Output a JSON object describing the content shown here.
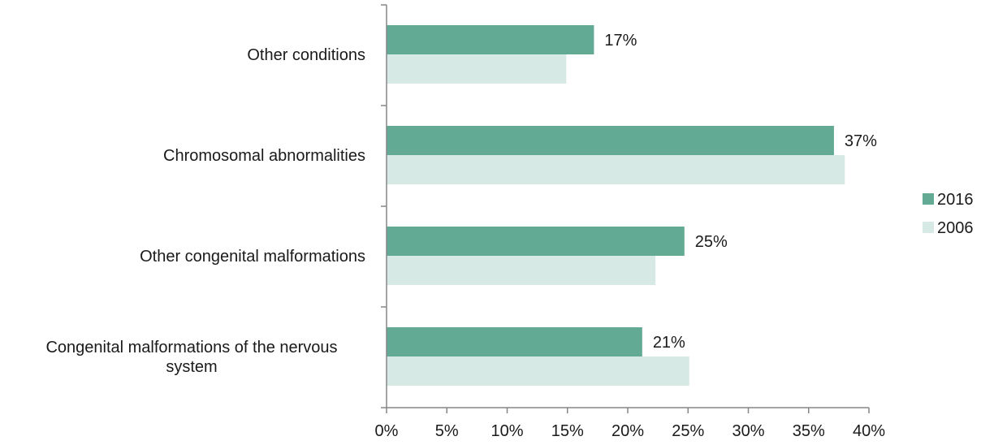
{
  "chart_data": {
    "type": "bar",
    "orientation": "horizontal",
    "categories": [
      "Congenital malformations of the nervous system",
      "Other congenital malformations",
      "Chromosomal abnormalities",
      "Other conditions"
    ],
    "category_lines": [
      [
        "Congenital malformations of the nervous",
        "system"
      ],
      [
        "Other congenital malformations"
      ],
      [
        "Chromosomal abnormalities"
      ],
      [
        "Other conditions"
      ]
    ],
    "series": [
      {
        "name": "2016",
        "values": [
          21.2,
          24.7,
          37.1,
          17.2
        ],
        "data_labels": [
          "21%",
          "25%",
          "37%",
          "17%"
        ],
        "color": "#63aa94"
      },
      {
        "name": "2006",
        "values": [
          25.1,
          22.3,
          38.0,
          14.9
        ],
        "color": "#d6e9e4"
      }
    ],
    "x_ticks": [
      0,
      5,
      10,
      15,
      20,
      25,
      30,
      35,
      40
    ],
    "x_tick_labels": [
      "0%",
      "5%",
      "10%",
      "15%",
      "20%",
      "25%",
      "30%",
      "35%",
      "40%"
    ],
    "xlim": [
      0,
      40
    ],
    "grid": false,
    "legend_position": "right"
  }
}
